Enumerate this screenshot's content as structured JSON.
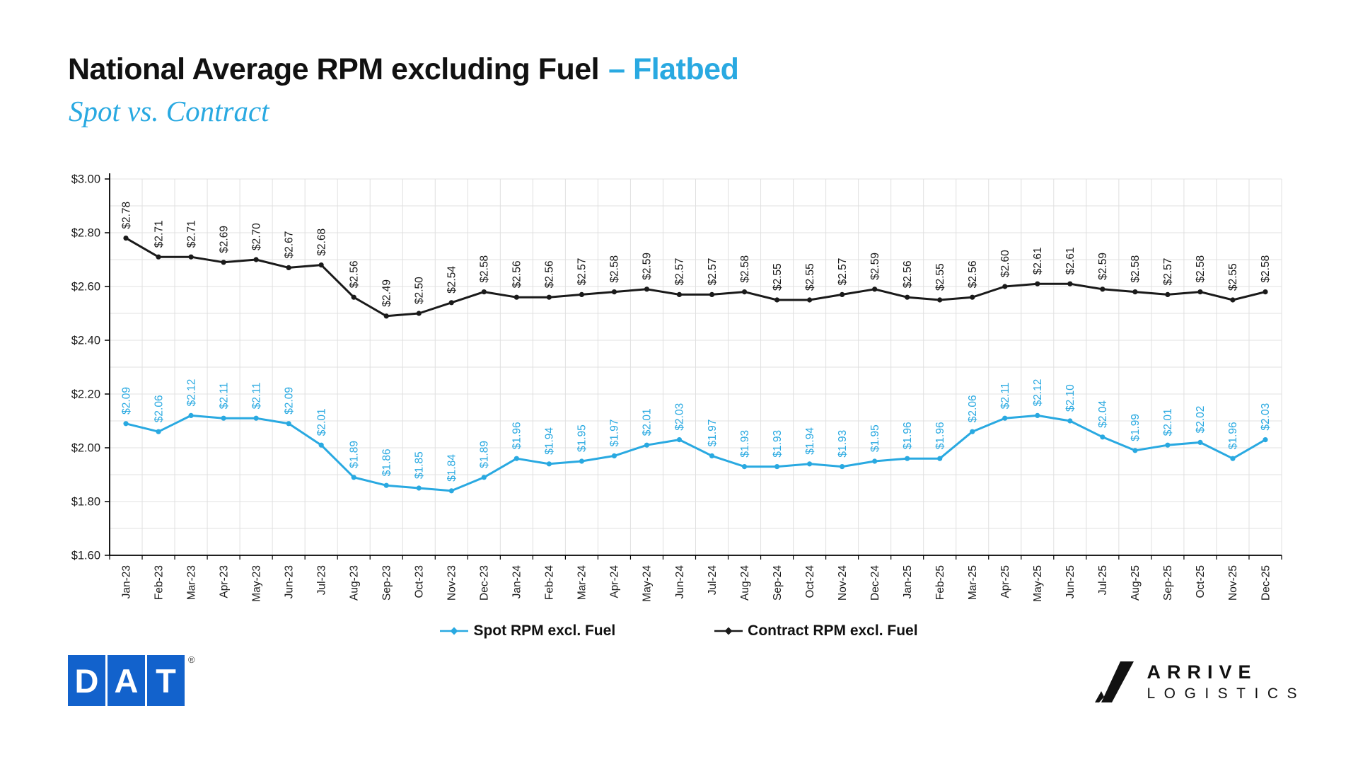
{
  "header": {
    "title": "National Average RPM excluding Fuel",
    "title_accent": "– Flatbed",
    "subtitle": "Spot vs. Contract"
  },
  "colors": {
    "accent_blue": "#29A9E1",
    "spot_line": "#29A9E1",
    "contract_line": "#1A1A1A",
    "grid": "#E0E0E0",
    "axis": "#000000",
    "dat_blue": "#1262CC"
  },
  "chart_data": {
    "type": "line",
    "title": "National Average RPM excluding Fuel – Flatbed",
    "subtitle": "Spot vs. Contract",
    "categories": [
      "Jan-23",
      "Feb-23",
      "Mar-23",
      "Apr-23",
      "May-23",
      "Jun-23",
      "Jul-23",
      "Aug-23",
      "Sep-23",
      "Oct-23",
      "Nov-23",
      "Dec-23",
      "Jan-24",
      "Feb-24",
      "Mar-24",
      "Apr-24",
      "May-24",
      "Jun-24",
      "Jul-24",
      "Aug-24",
      "Sep-24",
      "Oct-24",
      "Nov-24",
      "Dec-24",
      "Jan-25",
      "Feb-25",
      "Mar-25",
      "Apr-25",
      "May-25",
      "Jun-25",
      "Jul-25",
      "Aug-25",
      "Sep-25",
      "Oct-25",
      "Nov-25",
      "Dec-25"
    ],
    "series": [
      {
        "name": "Spot RPM excl. Fuel",
        "color": "#29A9E1",
        "values": [
          2.09,
          2.06,
          2.12,
          2.11,
          2.11,
          2.09,
          2.01,
          1.89,
          1.86,
          1.85,
          1.84,
          1.89,
          1.96,
          1.94,
          1.95,
          1.97,
          2.01,
          2.03,
          1.97,
          1.93,
          1.93,
          1.94,
          1.93,
          1.95,
          1.96,
          1.96,
          2.06,
          2.11,
          2.12,
          2.1,
          2.04,
          1.99,
          2.01,
          2.02,
          1.96,
          2.03
        ]
      },
      {
        "name": "Contract RPM excl. Fuel",
        "color": "#1A1A1A",
        "values": [
          2.78,
          2.71,
          2.71,
          2.69,
          2.7,
          2.67,
          2.68,
          2.56,
          2.49,
          2.5,
          2.54,
          2.58,
          2.56,
          2.56,
          2.57,
          2.58,
          2.59,
          2.57,
          2.57,
          2.58,
          2.55,
          2.55,
          2.57,
          2.59,
          2.56,
          2.55,
          2.56,
          2.6,
          2.61,
          2.61,
          2.59,
          2.58,
          2.57,
          2.58,
          2.55,
          2.58
        ]
      }
    ],
    "ylim": [
      1.6,
      3.0
    ],
    "ytick_step": 0.2,
    "grid_step": 0.1,
    "value_prefix": "$",
    "grid": true,
    "legend_position": "bottom",
    "data_labels": true
  },
  "footer": {
    "dat_letters": [
      "D",
      "A",
      "T"
    ],
    "dat_reg": "®",
    "arrive_line1": "ARRIVE",
    "arrive_line2": "LOGISTICS"
  }
}
